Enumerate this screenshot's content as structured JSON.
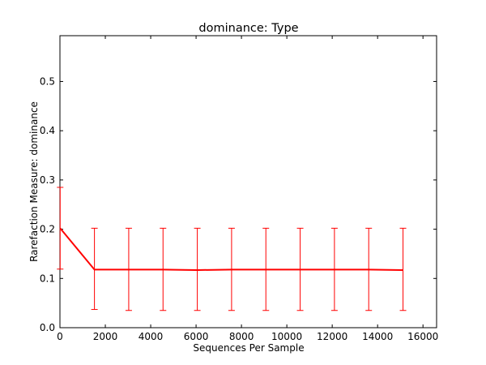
{
  "chart_data": {
    "type": "line",
    "title": "dominance: Type",
    "xlabel": "Sequences Per Sample",
    "ylabel": "Rarefaction Measure: dominance",
    "xlim": [
      0,
      16600
    ],
    "ylim": [
      0.0,
      0.593
    ],
    "xticks": [
      0,
      2000,
      4000,
      6000,
      8000,
      10000,
      12000,
      14000,
      16000
    ],
    "yticks": [
      0.0,
      0.1,
      0.2,
      0.3,
      0.4,
      0.5
    ],
    "ytick_labels": [
      "0.0",
      "0.1",
      "0.2",
      "0.3",
      "0.4",
      "0.5"
    ],
    "grid": false,
    "legend": "none",
    "series": [
      {
        "color": "#ff0000",
        "x": [
          10,
          1521,
          3032,
          4543,
          6054,
          7565,
          9076,
          10587,
          12098,
          13609,
          15120
        ],
        "y": [
          0.202,
          0.118,
          0.118,
          0.118,
          0.117,
          0.118,
          0.118,
          0.118,
          0.118,
          0.118,
          0.117
        ],
        "err_low": [
          0.119,
          0.037,
          0.035,
          0.035,
          0.035,
          0.035,
          0.035,
          0.035,
          0.035,
          0.035,
          0.035
        ],
        "err_high": [
          0.285,
          0.202,
          0.202,
          0.202,
          0.202,
          0.202,
          0.202,
          0.202,
          0.202,
          0.202,
          0.202
        ]
      }
    ]
  }
}
